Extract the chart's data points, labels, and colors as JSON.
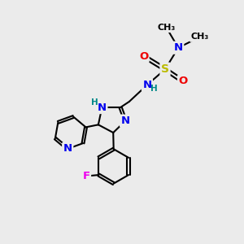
{
  "bg_color": "#ebebeb",
  "bond_color": "#000000",
  "bond_width": 1.5,
  "atom_colors": {
    "C": "#000000",
    "N": "#0000ee",
    "O": "#ee0000",
    "S": "#bbbb00",
    "F": "#ee00ee",
    "H": "#008888"
  },
  "font_size": 8.5
}
